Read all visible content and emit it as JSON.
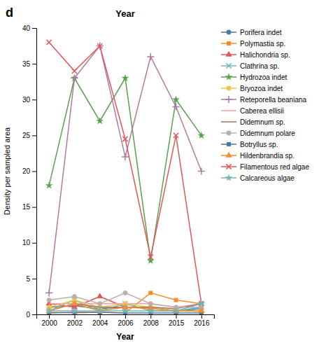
{
  "chart_data": {
    "type": "line",
    "title": "Year",
    "x_label": "Year",
    "y_label": "Density per sampled area",
    "annotations": [
      {
        "text": "d"
      }
    ],
    "categories": [
      "2000",
      "2002",
      "2004",
      "2006",
      "2008",
      "2015",
      "2016"
    ],
    "ylim": [
      0,
      40
    ],
    "yticks": [
      0,
      5,
      10,
      15,
      20,
      25,
      30,
      35,
      40
    ],
    "grid": false,
    "legend": "right",
    "series": [
      {
        "name": "Porifera indet",
        "marker": "circle",
        "line_style": "solid",
        "values": [
          1.0,
          1.2,
          0.8,
          1.0,
          1.0,
          0.5,
          0.8
        ]
      },
      {
        "name": "Polymastia sp.",
        "marker": "square",
        "line_style": "solid",
        "values": [
          0.3,
          0.2,
          0.3,
          0.2,
          3.0,
          2.0,
          1.5
        ]
      },
      {
        "name": "Halichondria sp.",
        "marker": "triangle",
        "line_style": "solid",
        "values": [
          1.5,
          1.0,
          2.5,
          1.0,
          1.0,
          0.5,
          0.5
        ]
      },
      {
        "name": "Clathrina sp.",
        "marker": "x",
        "line_style": "solid",
        "values": [
          0.5,
          2.0,
          0.5,
          1.5,
          0.5,
          0.5,
          1.0
        ]
      },
      {
        "name": "Hydrozoa indet",
        "marker": "star",
        "line_style": "solid",
        "values": [
          18.0,
          33.0,
          27.0,
          33.0,
          7.5,
          30.0,
          25.0
        ]
      },
      {
        "name": "Bryozoa indet",
        "marker": "circle",
        "line_style": "solid",
        "values": [
          1.0,
          2.0,
          1.0,
          1.5,
          1.0,
          0.5,
          0.5
        ]
      },
      {
        "name": "Reteporella beaniana",
        "marker": "plus",
        "line_style": "solid",
        "values": [
          3.0,
          33.0,
          37.5,
          22.0,
          36.0,
          29.0,
          20.0
        ]
      },
      {
        "name": "Caberea ellisii",
        "marker": "none",
        "line_style": "solid",
        "values": [
          1.5,
          1.5,
          1.5,
          1.5,
          1.5,
          1.0,
          1.5
        ]
      },
      {
        "name": "Didemnum sp.",
        "marker": "none",
        "line_style": "solid",
        "values": [
          0.5,
          1.5,
          1.0,
          1.0,
          1.0,
          0.8,
          1.5
        ]
      },
      {
        "name": "Didemnum polare",
        "marker": "circle",
        "line_style": "solid",
        "values": [
          2.0,
          2.5,
          1.5,
          3.0,
          1.5,
          1.0,
          1.0
        ]
      },
      {
        "name": "Botryllus sp.",
        "marker": "square",
        "line_style": "solid",
        "values": [
          0.2,
          0.3,
          0.3,
          0.2,
          0.2,
          0.2,
          0.2
        ]
      },
      {
        "name": "Hildenbrandia sp.",
        "marker": "triangle",
        "line_style": "solid",
        "values": [
          0.5,
          1.5,
          0.5,
          1.0,
          0.8,
          0.5,
          0.5
        ]
      },
      {
        "name": "Filamentous red algae",
        "marker": "x",
        "line_style": "solid",
        "values": [
          38.0,
          34.0,
          37.5,
          24.5,
          8.0,
          25.0,
          1.5
        ]
      },
      {
        "name": "Calcareous algae",
        "marker": "star",
        "line_style": "solid",
        "values": [
          0.5,
          0.5,
          0.5,
          0.5,
          0.5,
          0.5,
          1.5
        ]
      }
    ]
  }
}
